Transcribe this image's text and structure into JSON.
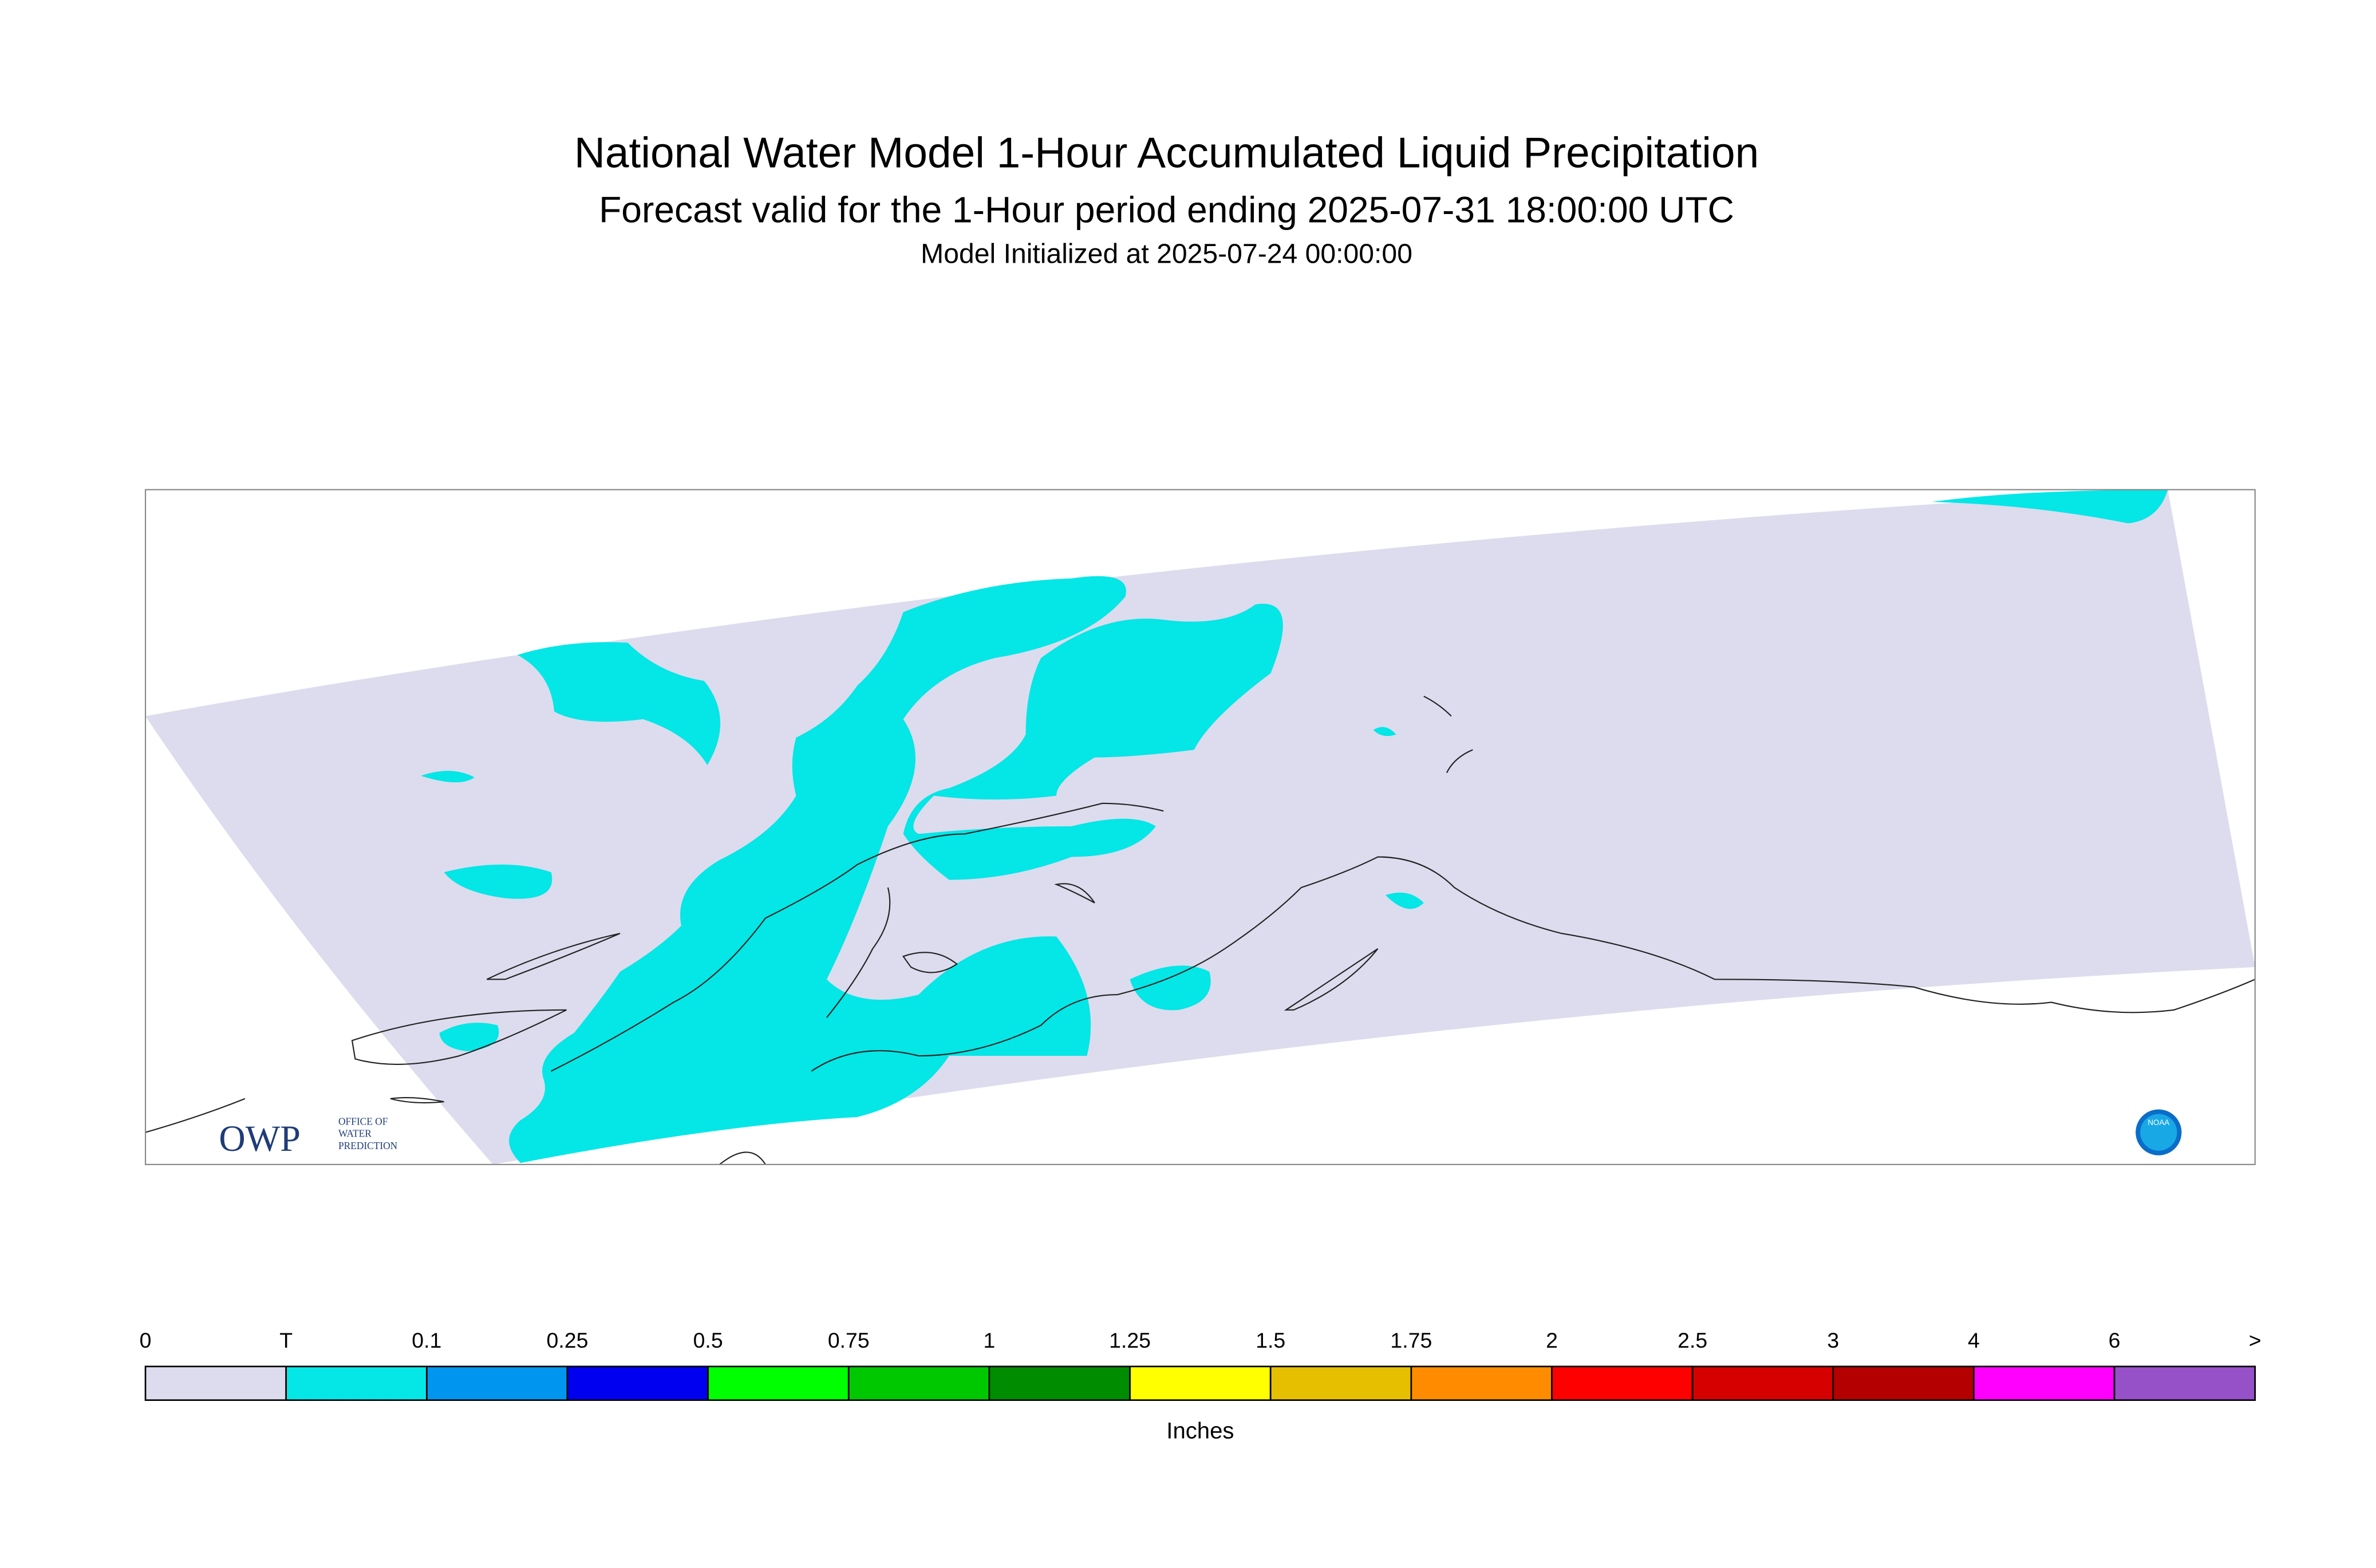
{
  "header": {
    "title": "National Water Model 1-Hour Accumulated Liquid Precipitation",
    "subtitle": "Forecast valid for the 1-Hour period ending 2025-07-31 18:00:00 UTC",
    "initialized": "Model Initialized at 2025-07-24 00:00:00"
  },
  "legend": {
    "labels": [
      "0",
      "T",
      "0.1",
      "0.25",
      "0.5",
      "0.75",
      "1",
      "1.25",
      "1.5",
      "1.75",
      "2",
      "2.5",
      "3",
      "4",
      "6",
      ">"
    ],
    "colors": [
      "#dcdcee",
      "#05e6e6",
      "#0096f0",
      "#0000f0",
      "#00ff00",
      "#00c800",
      "#008c00",
      "#ffff00",
      "#e6c000",
      "#ff8c00",
      "#ff0000",
      "#d60000",
      "#b40000",
      "#ff00ff",
      "#9650c8"
    ],
    "unit": "Inches"
  },
  "logos": {
    "owp": "OWP",
    "owp_lines": [
      "OFFICE OF",
      "WATER",
      "PREDICTION"
    ],
    "noaa": "NOAA"
  }
}
